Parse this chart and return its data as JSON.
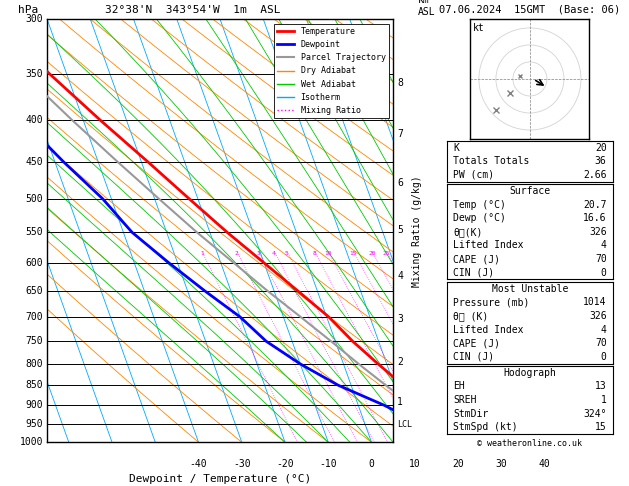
{
  "title_left": "32°38'N  343°54'W  1m  ASL",
  "title_right": "07.06.2024  15GMT  (Base: 06)",
  "xlabel": "Dewpoint / Temperature (°C)",
  "ylabel_left": "hPa",
  "pressure_major": [
    300,
    350,
    400,
    450,
    500,
    550,
    600,
    650,
    700,
    750,
    800,
    850,
    900,
    950,
    1000
  ],
  "km_ticks": [
    1,
    2,
    3,
    4,
    5,
    6,
    7,
    8
  ],
  "km_pressures": [
    892,
    795,
    705,
    622,
    546,
    478,
    416,
    360
  ],
  "lcl_pressure": 952,
  "isotherm_color": "#00aaff",
  "dry_adiabat_color": "#ff8800",
  "wet_adiabat_color": "#00cc00",
  "mixing_ratio_color": "#ff00ff",
  "temp_line_color": "#ff0000",
  "dewp_line_color": "#0000ff",
  "parcel_color": "#999999",
  "Tmin": -40,
  "Tmax": 40,
  "skew": 35,
  "temp_profile_p": [
    1000,
    950,
    900,
    850,
    800,
    750,
    700,
    650,
    600,
    550,
    500,
    450,
    400,
    350,
    300
  ],
  "temp_profile_t": [
    20.7,
    18.5,
    15.5,
    12.0,
    8.0,
    4.0,
    0.5,
    -4.5,
    -10.0,
    -16.0,
    -22.0,
    -28.5,
    -36.0,
    -44.0,
    -52.0
  ],
  "dewp_profile_p": [
    1000,
    950,
    900,
    850,
    800,
    750,
    700,
    650,
    600,
    550,
    500,
    450,
    400,
    350,
    300
  ],
  "dewp_profile_t": [
    16.6,
    13.0,
    6.0,
    -3.0,
    -10.0,
    -16.0,
    -20.0,
    -26.0,
    -32.0,
    -38.0,
    -42.0,
    -48.0,
    -54.0,
    -60.0,
    -65.0
  ],
  "parcel_profile_p": [
    1000,
    950,
    900,
    850,
    800,
    750,
    700,
    650,
    600,
    550,
    500,
    450,
    400,
    350,
    300
  ],
  "parcel_profile_t": [
    20.7,
    16.8,
    12.5,
    8.0,
    3.5,
    -1.0,
    -6.0,
    -11.5,
    -17.0,
    -23.0,
    -29.0,
    -35.5,
    -42.5,
    -50.0,
    -57.0
  ],
  "info_panel": {
    "K": 20,
    "Totals_Totals": 36,
    "PW_cm": 2.66,
    "Surface_Temp": 20.7,
    "Surface_Dewp": 16.6,
    "Surface_theta_e": 326,
    "Surface_LI": 4,
    "Surface_CAPE": 70,
    "Surface_CIN": 0,
    "MU_Pressure": 1014,
    "MU_theta_e": 326,
    "MU_LI": 4,
    "MU_CAPE": 70,
    "MU_CIN": 0,
    "Hodo_EH": 13,
    "Hodo_SREH": 1,
    "Hodo_StmDir": "324°",
    "Hodo_StmSpd": 15
  }
}
